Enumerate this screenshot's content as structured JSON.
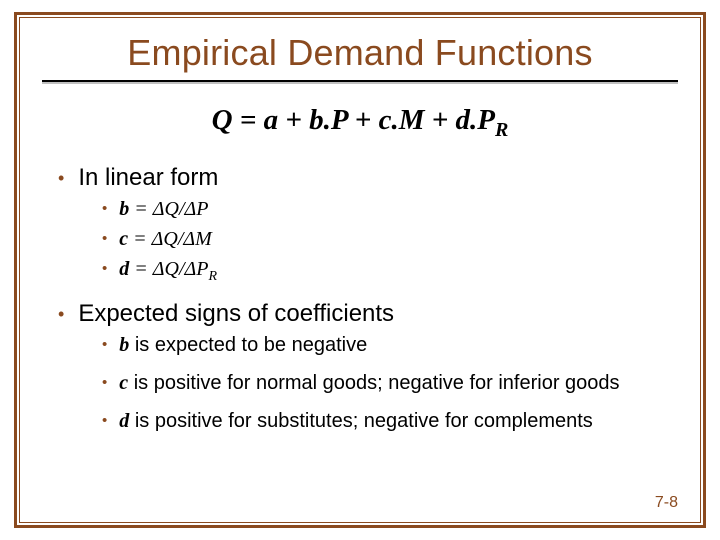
{
  "title": "Empirical Demand Functions",
  "equation": {
    "lhs": "Q",
    "eq": " = ",
    "t1": "a",
    "p1": " + ",
    "t2c": "b.",
    "t2v": "P",
    "p2": " + ",
    "t3c": "c.",
    "t3v": "M",
    "p3": " + ",
    "t4c": "d.",
    "t4v": "P",
    "t4sub": "R"
  },
  "section1": {
    "heading": "In linear form",
    "items": [
      {
        "coef": "b",
        "eq": " = ",
        "dq": "ΔQ/",
        "den": "ΔP",
        "sub": ""
      },
      {
        "coef": "c",
        "eq": " = ",
        "dq": "ΔQ/",
        "den": "ΔM",
        "sub": ""
      },
      {
        "coef": "d",
        "eq": " = ",
        "dq": "ΔQ/",
        "den": "ΔP",
        "sub": "R"
      }
    ]
  },
  "section2": {
    "heading": "Expected signs of coefficients",
    "items": [
      {
        "coef": "b",
        "text": " is expected to be negative"
      },
      {
        "coef": "c",
        "text": " is positive for normal goods; negative for inferior goods"
      },
      {
        "coef": "d",
        "text": " is positive for substitutes; negative for complements"
      }
    ]
  },
  "pageNumber": "7-8",
  "colors": {
    "accent": "#8a4a1f",
    "text": "#000000",
    "background": "#ffffff"
  }
}
